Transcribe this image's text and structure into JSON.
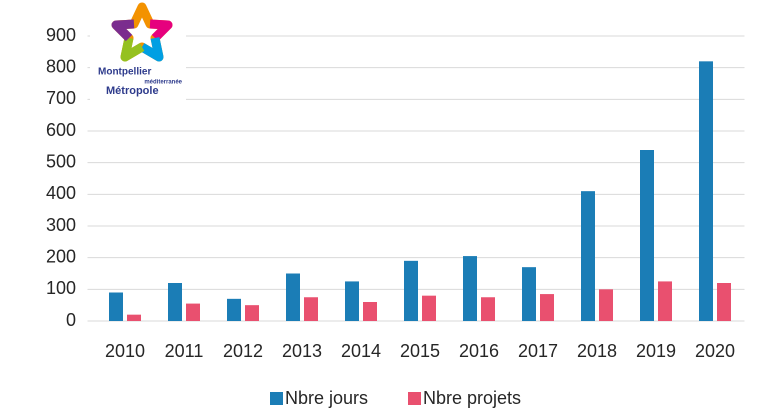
{
  "chart_data": {
    "type": "bar",
    "categories": [
      "2010",
      "2011",
      "2012",
      "2013",
      "2014",
      "2015",
      "2016",
      "2017",
      "2018",
      "2019",
      "2020"
    ],
    "series": [
      {
        "name": "Nbre jours",
        "color": "#1b7db6",
        "values": [
          90,
          120,
          70,
          150,
          125,
          190,
          205,
          170,
          410,
          540,
          820
        ]
      },
      {
        "name": "Nbre projets",
        "color": "#e9506f",
        "values": [
          20,
          55,
          50,
          75,
          60,
          80,
          75,
          85,
          100,
          125,
          120
        ]
      }
    ],
    "ylim": [
      0,
      900
    ],
    "yticks": [
      0,
      100,
      200,
      300,
      400,
      500,
      600,
      700,
      800,
      900
    ],
    "grid": true,
    "legend": "bottom"
  },
  "logo": {
    "line1": "Montpellier",
    "line2": "méditerranée",
    "line3": "Métropole"
  }
}
